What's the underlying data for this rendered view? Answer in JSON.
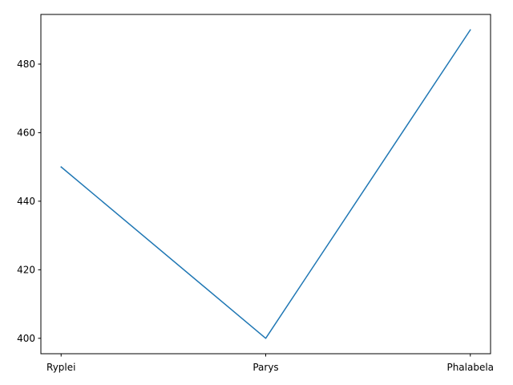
{
  "chart_data": {
    "type": "line",
    "categories": [
      "Ryplei",
      "Parys",
      "Phalabela"
    ],
    "series": [
      {
        "values": [
          450,
          400,
          490
        ]
      }
    ],
    "ylim": [
      395.5,
      494.5
    ],
    "yticks": [
      400,
      420,
      440,
      460,
      480
    ],
    "title": "",
    "xlabel": "",
    "ylabel": "",
    "grid": false,
    "line_color": "#1f77b4"
  }
}
